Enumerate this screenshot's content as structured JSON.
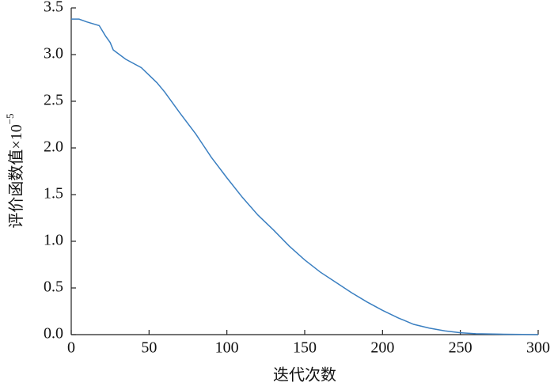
{
  "chart_data": {
    "type": "line",
    "x_label": "迭代次数",
    "y_label": "评价函数值×10",
    "y_label_superscript": "−5",
    "x": [
      0,
      5,
      10,
      18,
      22,
      25,
      27,
      35,
      45,
      50,
      55,
      60,
      70,
      80,
      90,
      100,
      110,
      120,
      130,
      140,
      150,
      160,
      170,
      180,
      190,
      200,
      210,
      220,
      230,
      240,
      250,
      260,
      275,
      290,
      300
    ],
    "series": [
      {
        "color": "#3a7fc1",
        "values": [
          3.38,
          3.38,
          3.35,
          3.31,
          3.2,
          3.13,
          3.05,
          2.95,
          2.86,
          2.78,
          2.7,
          2.6,
          2.37,
          2.15,
          1.9,
          1.68,
          1.47,
          1.28,
          1.12,
          0.95,
          0.8,
          0.67,
          0.56,
          0.45,
          0.35,
          0.26,
          0.18,
          0.11,
          0.07,
          0.04,
          0.02,
          0.01,
          0.005,
          0.002,
          0.0
        ]
      }
    ],
    "xlim": [
      0,
      300
    ],
    "xticks": [
      0,
      50,
      100,
      150,
      200,
      250,
      300
    ],
    "ylim": [
      0,
      3.5
    ],
    "yticks": [
      {
        "value": 0,
        "label": "0.0"
      },
      0.5,
      {
        "value": 1,
        "label": "1.0"
      },
      1.5,
      {
        "value": 2,
        "label": "2.0"
      },
      2.5,
      {
        "value": 3,
        "label": "3.0"
      },
      3.5
    ]
  }
}
